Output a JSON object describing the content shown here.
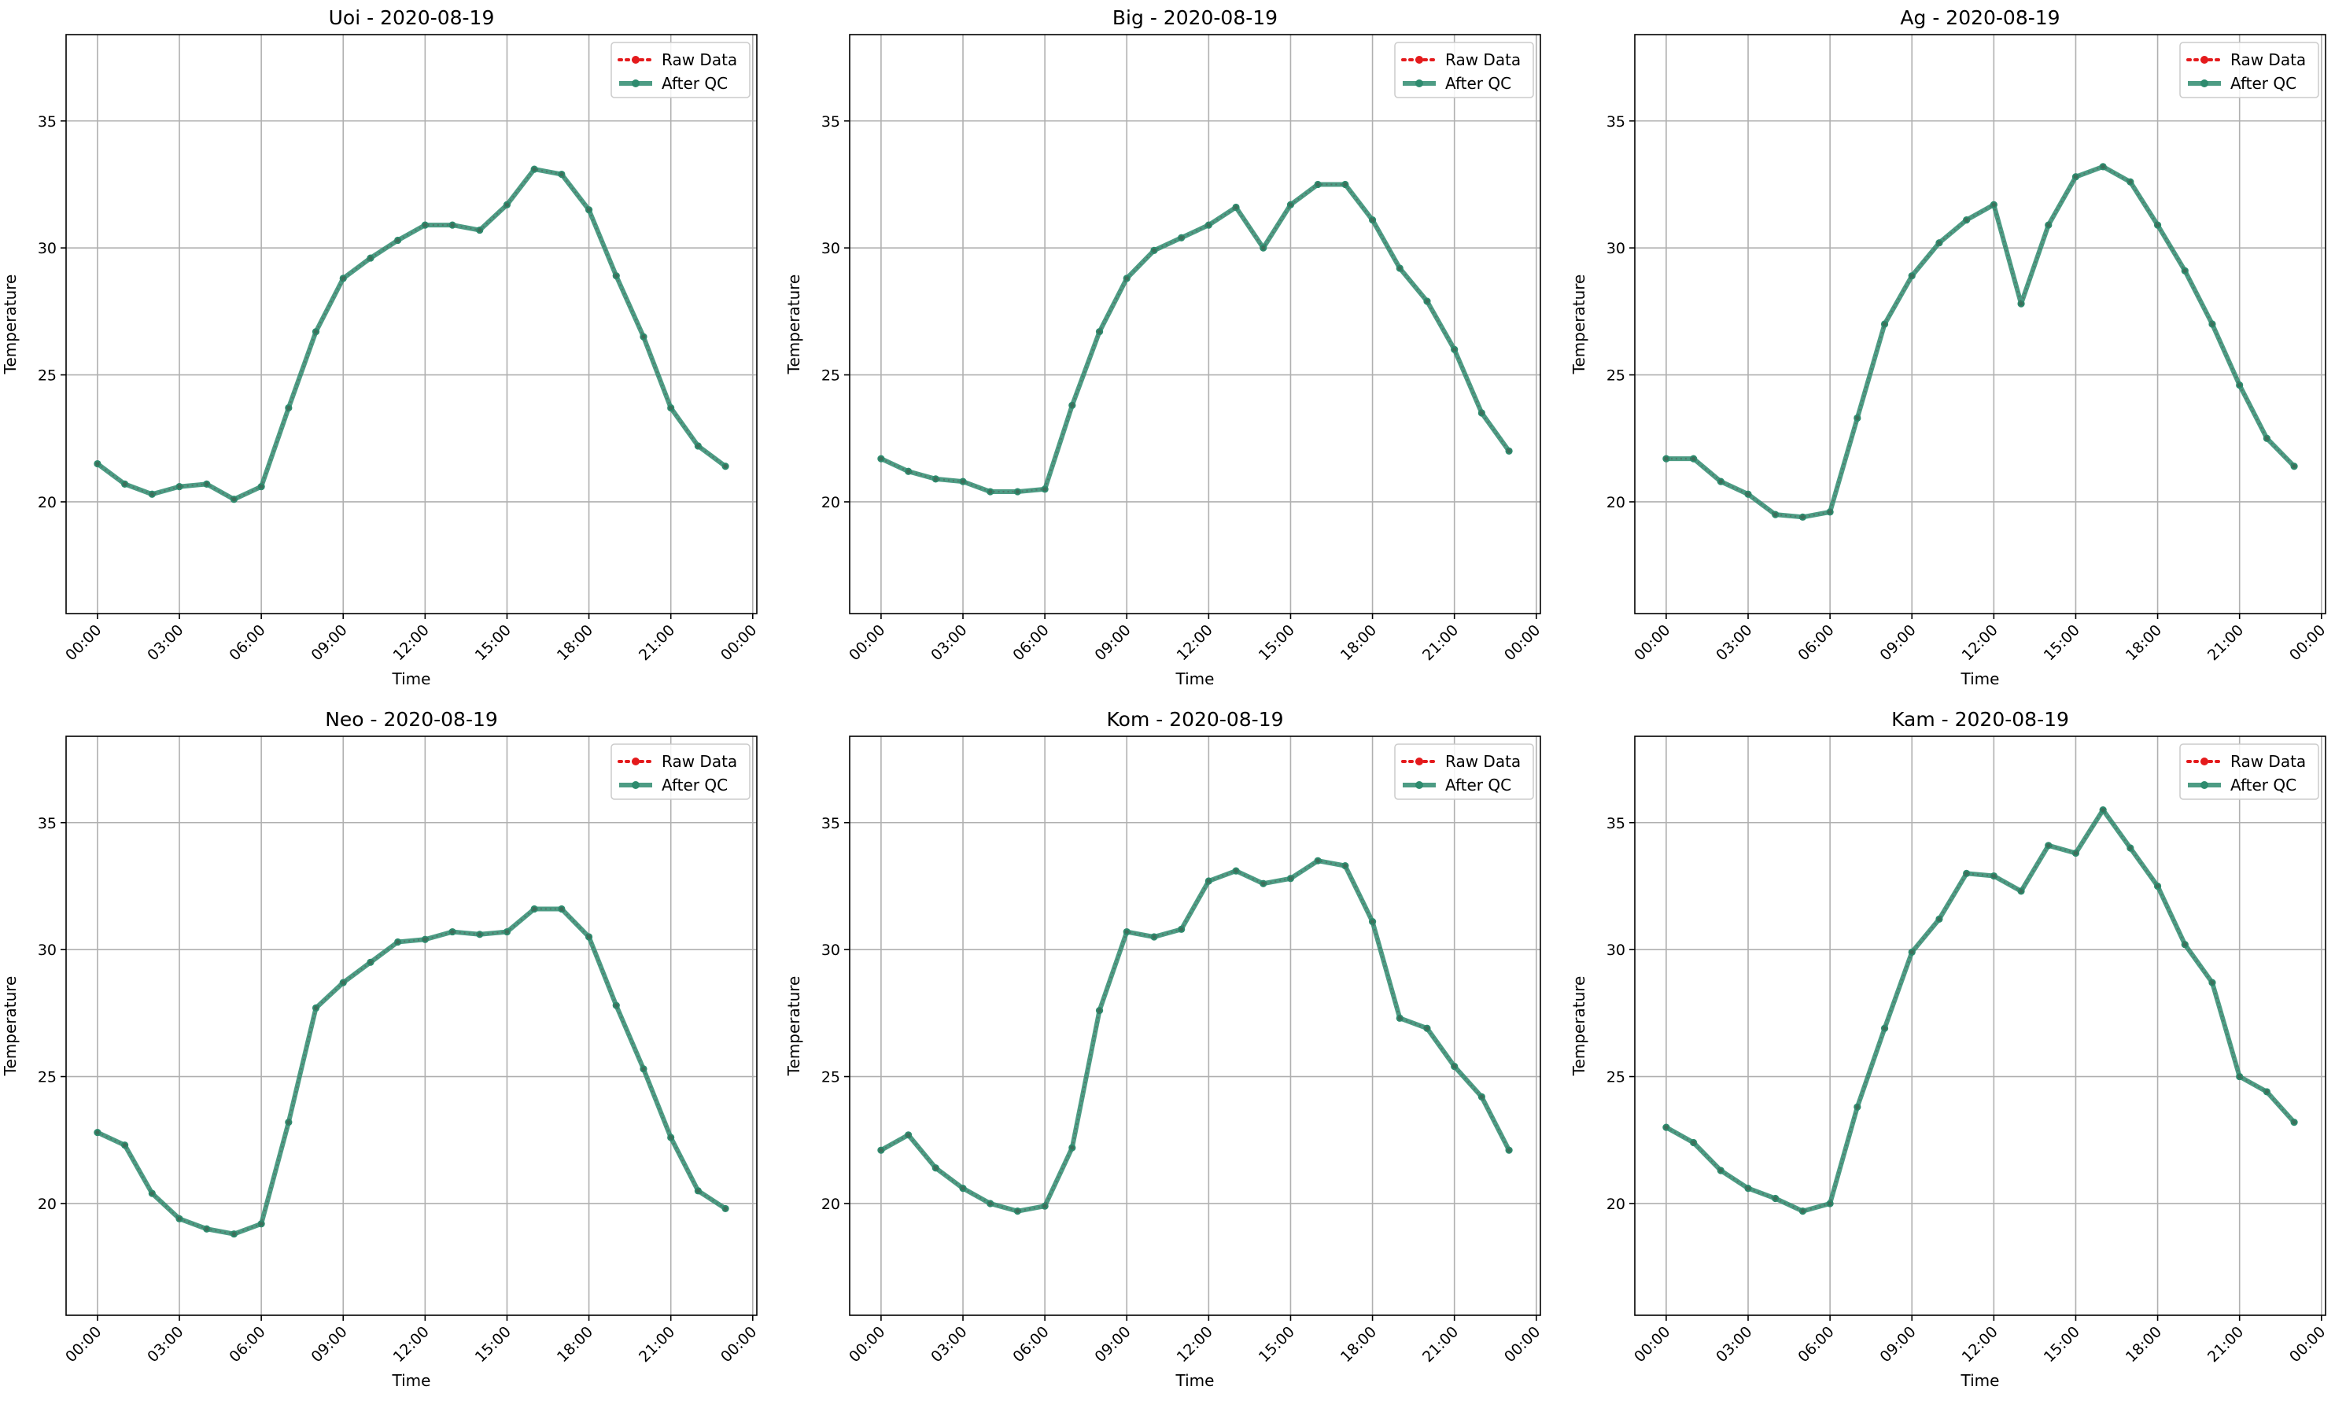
{
  "figure": {
    "hours": [
      "00:00",
      "01:00",
      "02:00",
      "03:00",
      "04:00",
      "05:00",
      "06:00",
      "07:00",
      "08:00",
      "09:00",
      "10:00",
      "11:00",
      "12:00",
      "13:00",
      "14:00",
      "15:00",
      "16:00",
      "17:00",
      "18:00",
      "19:00",
      "20:00",
      "21:00",
      "22:00",
      "23:00"
    ],
    "xticks": [
      "00:00",
      "03:00",
      "06:00",
      "09:00",
      "12:00",
      "15:00",
      "18:00",
      "21:00",
      "00:00"
    ],
    "colors": {
      "raw": "#e41a1c",
      "qc": "#2e8b6e",
      "grid": "#b0b0b0"
    }
  },
  "chart_data": [
    {
      "type": "line",
      "title": "Uoi - 2020-08-19",
      "xlabel": "Time",
      "ylabel": "Temperature",
      "ylim": [
        15.6,
        38.4
      ],
      "yticks": [
        20,
        25,
        30,
        35
      ],
      "grid": true,
      "legend": "top-right",
      "series": [
        {
          "name": "Raw Data",
          "values": [
            21.5,
            20.7,
            20.3,
            20.6,
            20.7,
            20.1,
            20.6,
            23.7,
            26.7,
            28.8,
            29.6,
            30.3,
            30.9,
            30.9,
            30.7,
            31.7,
            33.1,
            32.9,
            31.5,
            28.9,
            26.5,
            23.7,
            22.2,
            21.4
          ]
        },
        {
          "name": "After QC",
          "values": [
            21.5,
            20.7,
            20.3,
            20.6,
            20.7,
            20.1,
            20.6,
            23.7,
            26.7,
            28.8,
            29.6,
            30.3,
            30.9,
            30.9,
            30.7,
            31.7,
            33.1,
            32.9,
            31.5,
            28.9,
            26.5,
            23.7,
            22.2,
            21.4
          ]
        }
      ]
    },
    {
      "type": "line",
      "title": "Big - 2020-08-19",
      "xlabel": "Time",
      "ylabel": "Temperature",
      "ylim": [
        15.6,
        38.4
      ],
      "yticks": [
        20,
        25,
        30,
        35
      ],
      "grid": true,
      "legend": "top-right",
      "series": [
        {
          "name": "Raw Data",
          "values": [
            21.7,
            21.2,
            20.9,
            20.8,
            20.4,
            20.4,
            20.5,
            23.8,
            26.7,
            28.8,
            29.9,
            30.4,
            30.9,
            31.6,
            30.0,
            31.7,
            32.5,
            32.5,
            31.1,
            29.2,
            27.9,
            26.0,
            23.5,
            22.0
          ]
        },
        {
          "name": "After QC",
          "values": [
            21.7,
            21.2,
            20.9,
            20.8,
            20.4,
            20.4,
            20.5,
            23.8,
            26.7,
            28.8,
            29.9,
            30.4,
            30.9,
            31.6,
            30.0,
            31.7,
            32.5,
            32.5,
            31.1,
            29.2,
            27.9,
            26.0,
            23.5,
            22.0
          ]
        }
      ]
    },
    {
      "type": "line",
      "title": "Ag - 2020-08-19",
      "xlabel": "Time",
      "ylabel": "Temperature",
      "ylim": [
        15.6,
        38.4
      ],
      "yticks": [
        20,
        25,
        30,
        35
      ],
      "grid": true,
      "legend": "top-right",
      "series": [
        {
          "name": "Raw Data",
          "values": [
            21.7,
            21.7,
            20.8,
            20.3,
            19.5,
            19.4,
            19.6,
            23.3,
            27.0,
            28.9,
            30.2,
            31.1,
            31.7,
            27.8,
            30.9,
            32.8,
            33.2,
            32.6,
            30.9,
            29.1,
            27.0,
            24.6,
            22.5,
            21.4
          ]
        },
        {
          "name": "After QC",
          "values": [
            21.7,
            21.7,
            20.8,
            20.3,
            19.5,
            19.4,
            19.6,
            23.3,
            27.0,
            28.9,
            30.2,
            31.1,
            31.7,
            27.8,
            30.9,
            32.8,
            33.2,
            32.6,
            30.9,
            29.1,
            27.0,
            24.6,
            22.5,
            21.4
          ]
        }
      ]
    },
    {
      "type": "line",
      "title": "Neo - 2020-08-19",
      "xlabel": "Time",
      "ylabel": "Temperature",
      "ylim": [
        15.6,
        38.4
      ],
      "yticks": [
        20,
        25,
        30,
        35
      ],
      "grid": true,
      "legend": "top-right",
      "series": [
        {
          "name": "Raw Data",
          "values": [
            22.8,
            22.3,
            20.4,
            19.4,
            19.0,
            18.8,
            19.2,
            23.2,
            27.7,
            28.7,
            29.5,
            30.3,
            30.4,
            30.7,
            30.6,
            30.7,
            31.6,
            31.6,
            30.5,
            27.8,
            25.3,
            22.6,
            20.5,
            19.8
          ]
        },
        {
          "name": "After QC",
          "values": [
            22.8,
            22.3,
            20.4,
            19.4,
            19.0,
            18.8,
            19.2,
            23.2,
            27.7,
            28.7,
            29.5,
            30.3,
            30.4,
            30.7,
            30.6,
            30.7,
            31.6,
            31.6,
            30.5,
            27.8,
            25.3,
            22.6,
            20.5,
            19.8
          ]
        }
      ]
    },
    {
      "type": "line",
      "title": "Kom - 2020-08-19",
      "xlabel": "Time",
      "ylabel": "Temperature",
      "ylim": [
        15.6,
        38.4
      ],
      "yticks": [
        20,
        25,
        30,
        35
      ],
      "grid": true,
      "legend": "top-right",
      "series": [
        {
          "name": "Raw Data",
          "values": [
            22.1,
            22.7,
            21.4,
            20.6,
            20.0,
            19.7,
            19.9,
            22.2,
            27.6,
            30.7,
            30.5,
            30.8,
            32.7,
            33.1,
            32.6,
            32.8,
            33.5,
            33.3,
            31.1,
            27.3,
            26.9,
            25.4,
            24.2,
            22.1
          ]
        },
        {
          "name": "After QC",
          "values": [
            22.1,
            22.7,
            21.4,
            20.6,
            20.0,
            19.7,
            19.9,
            22.2,
            27.6,
            30.7,
            30.5,
            30.8,
            32.7,
            33.1,
            32.6,
            32.8,
            33.5,
            33.3,
            31.1,
            27.3,
            26.9,
            25.4,
            24.2,
            22.1
          ]
        }
      ]
    },
    {
      "type": "line",
      "title": "Kam - 2020-08-19",
      "xlabel": "Time",
      "ylabel": "Temperature",
      "ylim": [
        15.6,
        38.4
      ],
      "yticks": [
        20,
        25,
        30,
        35
      ],
      "grid": true,
      "legend": "top-right",
      "series": [
        {
          "name": "Raw Data",
          "values": [
            23.0,
            22.4,
            21.3,
            20.6,
            20.2,
            19.7,
            20.0,
            23.8,
            26.9,
            29.9,
            31.2,
            33.0,
            32.9,
            32.3,
            34.1,
            33.8,
            35.5,
            34.0,
            32.5,
            30.2,
            28.7,
            25.0,
            24.4,
            23.2
          ]
        },
        {
          "name": "After QC",
          "values": [
            23.0,
            22.4,
            21.3,
            20.6,
            20.2,
            19.7,
            20.0,
            23.8,
            26.9,
            29.9,
            31.2,
            33.0,
            32.9,
            32.3,
            34.1,
            33.8,
            35.5,
            34.0,
            32.5,
            30.2,
            28.7,
            25.0,
            24.4,
            23.2
          ]
        }
      ]
    }
  ]
}
